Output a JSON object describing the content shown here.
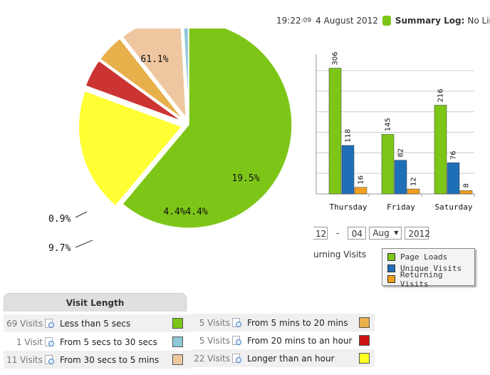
{
  "header": {
    "time": "19:22",
    "seconds": ":09",
    "date": "4 August 2012",
    "summary_label": "Summary Log:",
    "summary_value": "No Limit",
    "status_color": "#7dc618"
  },
  "chart_data": [
    {
      "type": "pie",
      "slices": [
        {
          "label": "61.1%",
          "value": 61.1,
          "color": "#7dc618"
        },
        {
          "label": "19.5%",
          "value": 19.5,
          "color": "#ffff33"
        },
        {
          "label": "4.4%",
          "value": 4.4,
          "color": "#cc3333"
        },
        {
          "label": "4.4%",
          "value": 4.4,
          "color": "#e8b04a"
        },
        {
          "label": "9.7%",
          "value": 9.7,
          "color": "#eec7a0"
        },
        {
          "label": "0.9%",
          "value": 0.9,
          "color": "#8ec8d8"
        }
      ]
    },
    {
      "type": "bar",
      "categories": [
        "Thursday",
        "Friday",
        "Saturday"
      ],
      "series": [
        {
          "name": "Page Loads",
          "color": "#7dc618",
          "values": [
            306,
            145,
            216
          ]
        },
        {
          "name": "Unique Visits",
          "color": "#1f6fb8",
          "values": [
            118,
            82,
            76
          ]
        },
        {
          "name": "Returning Visits",
          "color": "#f0a020",
          "values": [
            16,
            12,
            8
          ]
        }
      ],
      "ylim": [
        0,
        340
      ],
      "grid": true
    }
  ],
  "date_controls": {
    "day_left": "12",
    "dash": "-",
    "day": "04",
    "month": "Aug",
    "year": "2012"
  },
  "metric_link": "urning Visits",
  "legend": [
    {
      "label": "Page Loads",
      "color": "#7dc618"
    },
    {
      "label": "Unique Visits",
      "color": "#1f6fb8"
    },
    {
      "label": "Returning Visits",
      "color": "#f0a020"
    }
  ],
  "visit_length": {
    "title": "Visit Length",
    "rows": [
      {
        "count": "69 Visits",
        "label": "Less than 5 secs",
        "color": "#7dc618"
      },
      {
        "count": "1 Visit",
        "label": "From 5 secs to 30 secs",
        "color": "#8ec8d8"
      },
      {
        "count": "11 Visits",
        "label": "From 30 secs to 5 mins",
        "color": "#eec7a0"
      },
      {
        "count": "5 Visits",
        "label": "From 5 mins to 20 mins",
        "color": "#e8b04a"
      },
      {
        "count": "5 Visits",
        "label": "From 20 mins to an hour",
        "color": "#cc1111"
      },
      {
        "count": "22 Visits",
        "label": "Longer than an hour",
        "color": "#ffff22"
      }
    ]
  }
}
